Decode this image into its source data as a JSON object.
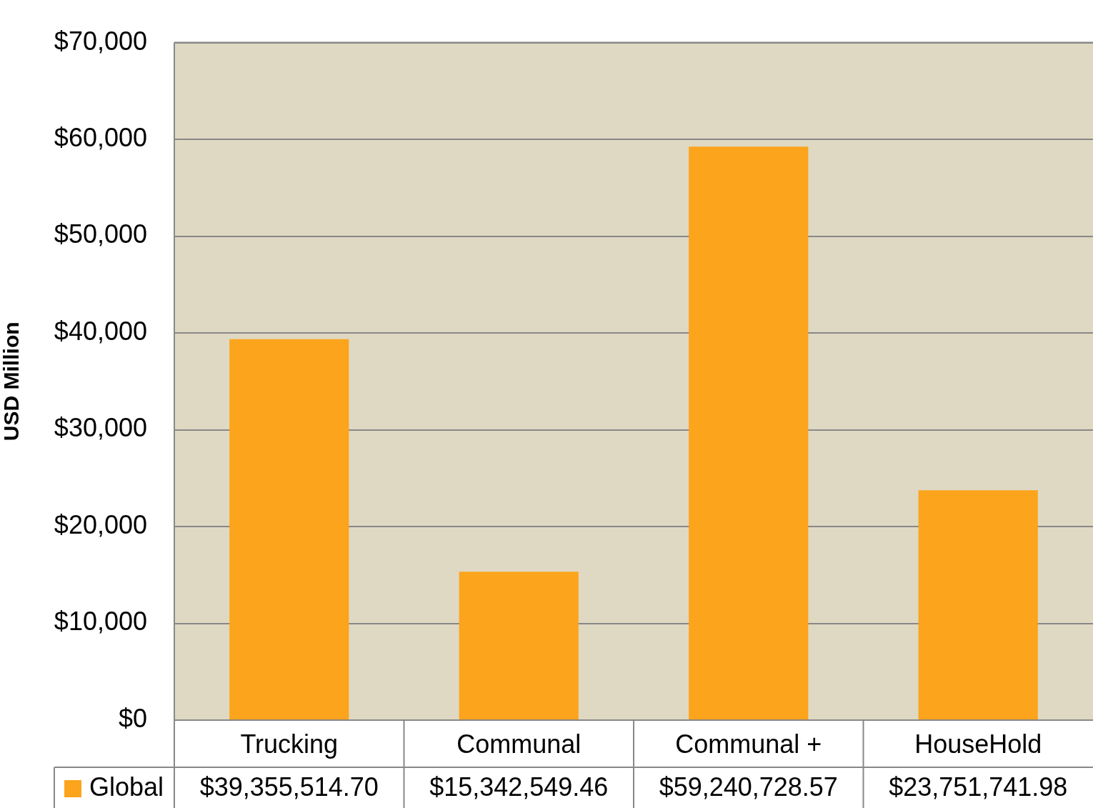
{
  "chart_data": {
    "type": "bar",
    "ylabel": "USD Million",
    "categories": [
      "Trucking",
      "Communal",
      "Communal +",
      "HouseHold"
    ],
    "series": [
      {
        "name": "Global",
        "color": "#fca41c",
        "values": [
          39355.51,
          15342.55,
          59240.73,
          23751.74
        ]
      }
    ],
    "annotations": [
      "$39,355,514.70",
      "$15,342,549.46",
      "$59,240,728.57",
      "$23,751,741.98"
    ],
    "ylim": [
      0,
      70000
    ],
    "yticks": [
      {
        "value": 0,
        "label": "$0"
      },
      {
        "value": 10000,
        "label": "$10,000"
      },
      {
        "value": 20000,
        "label": "$20,000"
      },
      {
        "value": 30000,
        "label": "$30,000"
      },
      {
        "value": 40000,
        "label": "$40,000"
      },
      {
        "value": 50000,
        "label": "$50,000"
      },
      {
        "value": 60000,
        "label": "$60,000"
      },
      {
        "value": 70000,
        "label": "$70,000"
      }
    ],
    "grid": "y",
    "legend": "bottom"
  }
}
